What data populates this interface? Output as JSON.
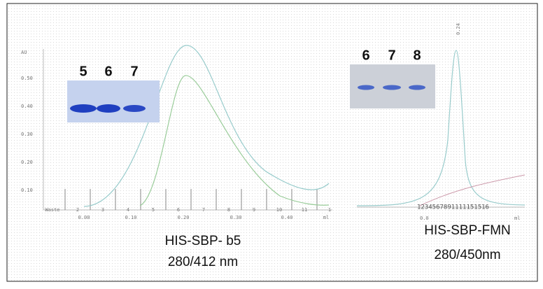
{
  "left_panel": {
    "y_axis_label": "AU",
    "y_ticks": [
      "0.50",
      "0.40",
      "0.30",
      "0.20",
      "0.10"
    ],
    "x_ticks": [
      "0.00",
      "0.10",
      "0.20",
      "0.30",
      "0.40",
      "ml"
    ],
    "fractions": [
      "Waste",
      "2",
      "3",
      "4",
      "5",
      "6",
      "7",
      "8",
      "9",
      "10",
      "11",
      "1"
    ],
    "gel_lanes": [
      "5",
      "6",
      "7"
    ],
    "caption": [
      "HIS-SBP- b5",
      "280/412 nm"
    ]
  },
  "right_panel": {
    "peak_label": "0.24",
    "x_ticks": [
      "0.0",
      "ml"
    ],
    "fractions": "1234567891111151516",
    "gel_lanes": [
      "6",
      "7",
      "8"
    ],
    "caption": [
      "HIS-SBP-FMN",
      "280/450nm"
    ]
  }
}
